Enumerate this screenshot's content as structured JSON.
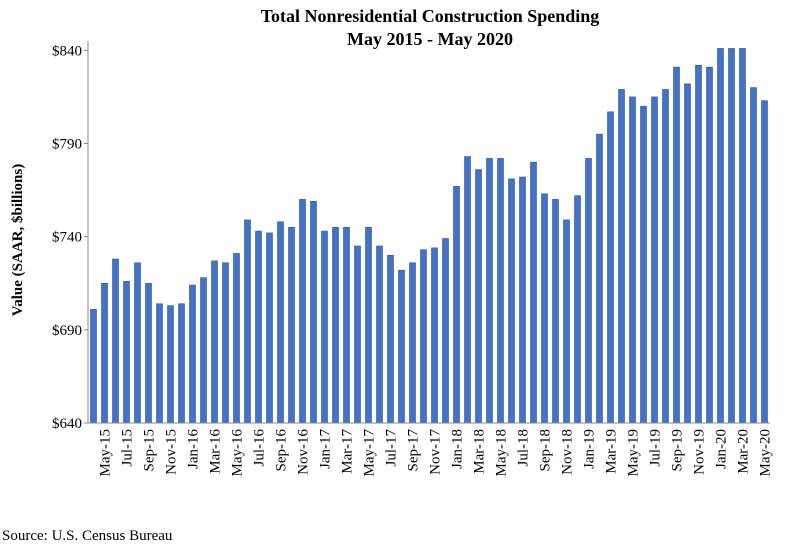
{
  "chart_data": {
    "type": "bar",
    "title": "Total Nonresidential Construction Spending",
    "subtitle": "May 2015 - May 2020",
    "y_label": "Value (SAAR, $billions)",
    "source": "Source:  U.S. Census Bureau",
    "categories": [
      null,
      "May-15",
      null,
      "Jul-15",
      null,
      "Sep-15",
      null,
      "Nov-15",
      null,
      "Jan-16",
      null,
      "Mar-16",
      null,
      "May-16",
      null,
      "Jul-16",
      null,
      "Sep-16",
      null,
      "Nov-16",
      null,
      "Jan-17",
      null,
      "Mar-17",
      null,
      "May-17",
      null,
      "Jul-17",
      null,
      "Sep-17",
      null,
      "Nov-17",
      null,
      "Jan-18",
      null,
      "Mar-18",
      null,
      "May-18",
      null,
      "Jul-18",
      null,
      "Sep-18",
      null,
      "Nov-18",
      null,
      "Jan-19",
      null,
      "Mar-19",
      null,
      "May-19",
      null,
      "Jul-19",
      null,
      "Sep-19",
      null,
      "Nov-19",
      null,
      "Jan-20",
      null,
      "Mar-20",
      null,
      "May-20"
    ],
    "values": [
      701,
      715,
      728,
      716,
      726,
      715,
      704,
      703,
      704,
      714,
      718,
      727,
      726,
      731,
      749,
      743,
      742,
      748,
      745,
      760,
      759,
      743,
      745,
      745,
      735,
      745,
      735,
      730,
      722,
      726,
      733,
      734,
      739,
      767,
      783,
      776,
      782,
      782,
      771,
      772,
      780,
      763,
      760,
      749,
      762,
      782,
      795,
      807,
      819,
      815,
      810,
      815,
      819,
      831,
      822,
      832,
      831,
      841,
      841,
      841,
      820,
      813
    ],
    "color": "#4472c4",
    "ylim": [
      640,
      845
    ],
    "yticks": [
      {
        "value": 640,
        "label": "$640"
      },
      {
        "value": 690,
        "label": "$690"
      },
      {
        "value": 740,
        "label": "$740"
      },
      {
        "value": 790,
        "label": "$790"
      },
      {
        "value": 840,
        "label": "$840"
      }
    ],
    "grid": false
  }
}
